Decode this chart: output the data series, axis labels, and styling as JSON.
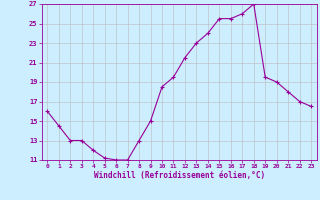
{
  "x": [
    0,
    1,
    2,
    3,
    4,
    5,
    6,
    7,
    8,
    9,
    10,
    11,
    12,
    13,
    14,
    15,
    16,
    17,
    18,
    19,
    20,
    21,
    22,
    23
  ],
  "y": [
    16,
    14.5,
    13,
    13,
    12,
    11.2,
    11,
    11,
    13,
    15,
    18.5,
    19.5,
    21.5,
    23,
    24,
    25.5,
    25.5,
    26,
    27,
    19.5,
    19,
    18,
    17,
    16.5
  ],
  "xlabel": "Windchill (Refroidissement éolien,°C)",
  "ylim": [
    11,
    27
  ],
  "xlim": [
    -0.5,
    23.5
  ],
  "yticks": [
    11,
    13,
    15,
    17,
    19,
    21,
    23,
    25,
    27
  ],
  "xticks": [
    0,
    1,
    2,
    3,
    4,
    5,
    6,
    7,
    8,
    9,
    10,
    11,
    12,
    13,
    14,
    15,
    16,
    17,
    18,
    19,
    20,
    21,
    22,
    23
  ],
  "line_color": "#990099",
  "marker": "+",
  "background_color": "#cceeff",
  "grid_color": "#bbbbbb"
}
